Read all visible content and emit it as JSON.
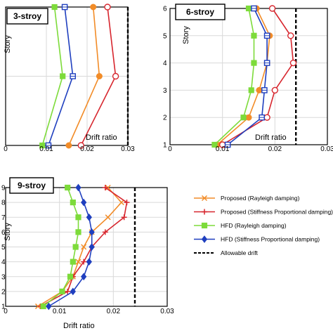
{
  "figure": {
    "legend": [
      {
        "label": "Proposed  (Rayleigh damping)",
        "color": "#f28c28",
        "marker": "x"
      },
      {
        "label": "Proposed  (Stiffness Proportional damping)",
        "color": "#d7262e",
        "marker": "plus"
      },
      {
        "label": "HFD (Rayleigh damping)",
        "color": "#7ddb3a",
        "marker": "square"
      },
      {
        "label": "HFD  (Stiffness Proportional  damping)",
        "color": "#1f3fbf",
        "marker": "diamond"
      },
      {
        "label": "Allowable drift",
        "color": "#000000",
        "marker": "dashed"
      }
    ]
  },
  "chart_data": [
    {
      "type": "line",
      "title": "3-stroy",
      "xlabel": "Drift ratio",
      "ylabel": "Story",
      "xlim": [
        0,
        0.03
      ],
      "xticks": [
        "0",
        "0.01",
        "0.02",
        "0.03"
      ],
      "ylim": [
        1,
        3
      ],
      "yticks": [],
      "grid": true,
      "allowable_drift": 0.03,
      "series": [
        {
          "name": "Proposed  (Rayleigh damping)",
          "color": "#f28c28",
          "marker": "filled-circle",
          "x": [
            0.0155,
            0.023,
            0.0215
          ],
          "y": [
            1,
            2,
            3
          ]
        },
        {
          "name": "Proposed  (Stiffness Proportional damping)",
          "color": "#d7262e",
          "marker": "open-circle",
          "x": [
            0.0185,
            0.027,
            0.025
          ],
          "y": [
            1,
            2,
            3
          ]
        },
        {
          "name": "HFD (Rayleigh damping)",
          "color": "#7ddb3a",
          "marker": "filled-square",
          "x": [
            0.009,
            0.014,
            0.012
          ],
          "y": [
            1,
            2,
            3
          ]
        },
        {
          "name": "HFD  (Stiffness Proportional  damping)",
          "color": "#1f3fbf",
          "marker": "open-square",
          "x": [
            0.0105,
            0.0165,
            0.0145
          ],
          "y": [
            1,
            2,
            3
          ]
        }
      ]
    },
    {
      "type": "line",
      "title": "6-stroy",
      "xlabel": "Drift ratio",
      "ylabel": "Story",
      "xlim": [
        0,
        0.03
      ],
      "xticks": [
        "0",
        "0.01",
        "0.02",
        "0.03"
      ],
      "ylim": [
        1,
        6
      ],
      "yticks": [
        "1",
        "2",
        "3",
        "4",
        "5",
        "6"
      ],
      "grid": true,
      "allowable_drift": 0.024,
      "series": [
        {
          "name": "Proposed  (Rayleigh damping)",
          "color": "#f28c28",
          "marker": "filled-circle",
          "x": [
            0.009,
            0.015,
            0.017,
            0.0185,
            0.019,
            0.0165
          ],
          "y": [
            1,
            2,
            3,
            4,
            5,
            6
          ]
        },
        {
          "name": "Proposed  (Stiffness Proportional damping)",
          "color": "#d7262e",
          "marker": "open-circle",
          "x": [
            0.01,
            0.0185,
            0.02,
            0.0235,
            0.023,
            0.0195
          ],
          "y": [
            1,
            2,
            3,
            4,
            5,
            6
          ]
        },
        {
          "name": "HFD (Rayleigh damping)",
          "color": "#7ddb3a",
          "marker": "filled-square",
          "x": [
            0.0085,
            0.014,
            0.0155,
            0.016,
            0.016,
            0.015
          ],
          "y": [
            1,
            2,
            3,
            4,
            5,
            6
          ]
        },
        {
          "name": "HFD  (Stiffness Proportional  damping)",
          "color": "#1f3fbf",
          "marker": "open-square",
          "x": [
            0.011,
            0.0175,
            0.018,
            0.0185,
            0.0185,
            0.016
          ],
          "y": [
            1,
            2,
            3,
            4,
            5,
            6
          ]
        }
      ]
    },
    {
      "type": "line",
      "title": "9-stroy",
      "xlabel": "Drift ratio",
      "ylabel": "Story",
      "xlim": [
        0,
        0.03
      ],
      "xticks": [
        "0",
        "0.01",
        "0.02",
        "0.03"
      ],
      "ylim": [
        1,
        9
      ],
      "yticks": [
        "1",
        "2",
        "3",
        "4",
        "5",
        "6",
        "7",
        "8",
        "9"
      ],
      "grid": true,
      "allowable_drift": 0.024,
      "series": [
        {
          "name": "Proposed  (Rayleigh damping)",
          "color": "#f28c28",
          "marker": "x",
          "x": [
            0.006,
            0.0105,
            0.0125,
            0.0135,
            0.0145,
            0.016,
            0.019,
            0.0215,
            0.019
          ],
          "y": [
            1,
            2,
            3,
            4,
            5,
            6,
            7,
            8,
            9
          ]
        },
        {
          "name": "Proposed  (Stiffness Proportional damping)",
          "color": "#d7262e",
          "marker": "plus",
          "x": [
            0.0065,
            0.0115,
            0.0125,
            0.0145,
            0.016,
            0.0185,
            0.022,
            0.0225,
            0.0185
          ],
          "y": [
            1,
            2,
            3,
            4,
            5,
            6,
            7,
            8,
            9
          ]
        },
        {
          "name": "HFD (Rayleigh damping)",
          "color": "#7ddb3a",
          "marker": "filled-square",
          "x": [
            0.007,
            0.0105,
            0.012,
            0.0125,
            0.013,
            0.0135,
            0.0135,
            0.0125,
            0.0115
          ],
          "y": [
            1,
            2,
            3,
            4,
            5,
            6,
            7,
            8,
            9
          ]
        },
        {
          "name": "HFD  (Stiffness Proportional  damping)",
          "color": "#1f3fbf",
          "marker": "diamond",
          "x": [
            0.008,
            0.0125,
            0.0145,
            0.0155,
            0.016,
            0.016,
            0.0155,
            0.0145,
            0.0135
          ],
          "y": [
            1,
            2,
            3,
            4,
            5,
            6,
            7,
            8,
            9
          ]
        }
      ]
    }
  ]
}
